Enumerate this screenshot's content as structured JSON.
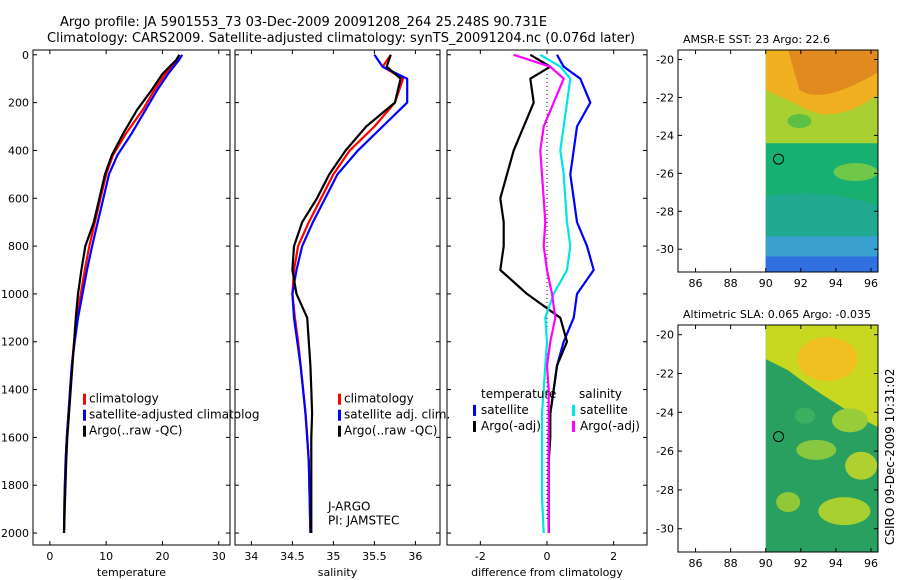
{
  "header": {
    "title_line1": "Argo profile: JA 5901553_73 03-Dec-2009 20091208_264 25.248S 90.731E",
    "title_line2": "Climatology: CARS2009. Satellite-adjusted climatology: synTS_20091204.nc (0.076d later)"
  },
  "side_label": "CSIRO 09-Dec-2009 10:31:02",
  "colors": {
    "climatology": "#ff0000",
    "satellite": "#0000ff",
    "argo": "#000000",
    "sal_satellite": "#00e5e5",
    "sal_argo": "#ff00ff"
  },
  "chart_data": [
    {
      "type": "line",
      "id": "temperature",
      "xlabel": "temperature",
      "ylabel": "",
      "xlim": [
        -3,
        32
      ],
      "ylim": [
        2050,
        -20
      ],
      "xticks": [
        0,
        10,
        20,
        30
      ],
      "yticks": [
        0,
        200,
        400,
        600,
        800,
        1000,
        1200,
        1400,
        1600,
        1800,
        2000
      ],
      "legend": {
        "position": "bottom-left",
        "entries": [
          {
            "label": "climatology",
            "color": "#ff0000"
          },
          {
            "label": "satellite-adjusted climatolog",
            "color": "#0000ff"
          },
          {
            "label": "Argo(..raw -QC)",
            "color": "#000000"
          }
        ]
      },
      "series": [
        {
          "name": "climatology",
          "color": "#ff0000",
          "x": [
            23.0,
            22.6,
            20.5,
            18.5,
            16.5,
            13.5,
            11.2,
            10.0,
            9.0,
            8.0,
            7.0,
            6.2,
            5.5,
            4.8,
            4.3,
            3.9,
            3.6,
            3.3,
            3.0,
            2.8,
            2.6,
            2.5
          ],
          "y": [
            0,
            20,
            80,
            150,
            230,
            330,
            420,
            500,
            600,
            700,
            800,
            900,
            1000,
            1100,
            1200,
            1300,
            1400,
            1500,
            1600,
            1700,
            1850,
            2000
          ]
        },
        {
          "name": "satellite-adjusted climatology",
          "color": "#0000ff",
          "x": [
            23.5,
            23.0,
            21.0,
            19.0,
            17.0,
            14.5,
            12.0,
            10.5,
            9.5,
            8.5,
            7.5,
            6.6,
            5.8,
            5.0,
            4.4,
            3.9,
            3.6,
            3.3,
            3.0,
            2.8,
            2.6,
            2.5
          ],
          "y": [
            0,
            20,
            80,
            150,
            230,
            330,
            420,
            500,
            600,
            700,
            800,
            900,
            1000,
            1100,
            1200,
            1300,
            1400,
            1500,
            1600,
            1700,
            1850,
            2000
          ]
        },
        {
          "name": "Argo(..raw -QC)",
          "color": "#000000",
          "x": [
            23.0,
            22.5,
            20.0,
            18.0,
            15.5,
            13.0,
            11.0,
            9.8,
            8.8,
            7.8,
            6.3,
            5.6,
            5.0,
            4.6,
            4.3,
            4.0,
            3.7,
            3.4,
            3.1,
            2.9,
            2.7,
            2.5
          ],
          "y": [
            0,
            20,
            80,
            150,
            230,
            330,
            420,
            500,
            600,
            700,
            800,
            900,
            1000,
            1100,
            1200,
            1300,
            1400,
            1500,
            1600,
            1700,
            1850,
            2000
          ]
        }
      ]
    },
    {
      "type": "line",
      "id": "salinity",
      "xlabel": "salinity",
      "xlim": [
        33.8,
        36.3
      ],
      "ylim": [
        2050,
        -20
      ],
      "xticks": [
        34,
        34.5,
        35,
        35.5,
        36
      ],
      "legend": {
        "position": "bottom-right",
        "entries": [
          {
            "label": "climatology",
            "color": "#ff0000"
          },
          {
            "label": "satellite adj. clim.",
            "color": "#0000ff"
          },
          {
            "label": "Argo(..raw -QC)",
            "color": "#000000"
          }
        ]
      },
      "annotation": [
        "J-ARGO",
        "PI: JAMSTEC"
      ],
      "series": [
        {
          "name": "climatology",
          "color": "#ff0000",
          "x": [
            35.7,
            35.6,
            35.85,
            35.75,
            35.5,
            35.2,
            35.0,
            34.85,
            34.7,
            34.57,
            34.52,
            34.5,
            34.53,
            34.57,
            34.6,
            34.63,
            34.66,
            34.68,
            34.7,
            34.71,
            34.72
          ],
          "y": [
            0,
            50,
            100,
            200,
            300,
            400,
            500,
            600,
            700,
            800,
            900,
            1000,
            1100,
            1200,
            1300,
            1400,
            1500,
            1600,
            1700,
            1850,
            2000
          ]
        },
        {
          "name": "satellite adjusted",
          "color": "#0000ff",
          "x": [
            35.5,
            35.6,
            35.9,
            35.9,
            35.6,
            35.3,
            35.05,
            34.9,
            34.75,
            34.62,
            34.55,
            34.5,
            34.52,
            34.56,
            34.6,
            34.63,
            34.66,
            34.68,
            34.7,
            34.71,
            34.72
          ],
          "y": [
            0,
            50,
            100,
            200,
            300,
            400,
            500,
            600,
            700,
            800,
            900,
            1000,
            1100,
            1200,
            1300,
            1400,
            1500,
            1600,
            1700,
            1850,
            2000
          ]
        },
        {
          "name": "Argo(..raw -QC)",
          "color": "#000000",
          "x": [
            35.7,
            35.65,
            35.82,
            35.75,
            35.4,
            35.15,
            34.95,
            34.8,
            34.62,
            34.52,
            34.5,
            34.55,
            34.68,
            34.7,
            34.72,
            34.73,
            34.74,
            34.73,
            34.73,
            34.73,
            34.73
          ],
          "y": [
            0,
            50,
            100,
            200,
            300,
            400,
            500,
            600,
            700,
            800,
            900,
            1000,
            1100,
            1200,
            1300,
            1400,
            1500,
            1600,
            1700,
            1850,
            2000
          ]
        }
      ]
    },
    {
      "type": "line",
      "id": "difference",
      "xlabel": "difference from climatology",
      "xlim": [
        -3.0,
        3.0
      ],
      "ylim": [
        2050,
        -20
      ],
      "xticks": [
        -2,
        0,
        2
      ],
      "zero_line": true,
      "legend": {
        "position": "bottom",
        "left_title": "temperature",
        "right_title": "salinity",
        "left_entries": [
          {
            "label": "satellite",
            "color": "#0000ff"
          },
          {
            "label": "Argo(-adj)",
            "color": "#000000"
          }
        ],
        "right_entries": [
          {
            "label": "satellite",
            "color": "#00e5e5"
          },
          {
            "label": "Argo(-adj)",
            "color": "#ff00ff"
          }
        ]
      },
      "series": [
        {
          "name": "temperature satellite",
          "color": "#0000ff",
          "x": [
            0.3,
            0.5,
            1.0,
            1.3,
            0.9,
            0.8,
            0.7,
            0.8,
            0.9,
            1.2,
            1.4,
            0.9,
            0.8,
            0.5,
            0.3,
            0.2,
            0.1,
            0.05,
            0.05,
            0.05,
            0.05
          ],
          "y": [
            0,
            50,
            100,
            200,
            300,
            400,
            500,
            600,
            700,
            800,
            900,
            1000,
            1100,
            1200,
            1300,
            1400,
            1500,
            1600,
            1700,
            1850,
            2000
          ]
        },
        {
          "name": "temperature Argo(-adj)",
          "color": "#000000",
          "x": [
            -0.5,
            0.1,
            -0.5,
            -0.4,
            -0.7,
            -1.0,
            -1.2,
            -1.4,
            -1.3,
            -1.3,
            -1.4,
            -0.6,
            0.4,
            0.6,
            0.3,
            0.2,
            0.1,
            0.1,
            0.05,
            0.05,
            0.05
          ],
          "y": [
            0,
            50,
            100,
            200,
            300,
            400,
            500,
            600,
            700,
            800,
            900,
            1000,
            1100,
            1200,
            1300,
            1400,
            1500,
            1600,
            1700,
            1850,
            2000
          ]
        },
        {
          "name": "salinity satellite",
          "color": "#00e5e5",
          "x": [
            -0.2,
            0.4,
            0.7,
            0.6,
            0.5,
            0.4,
            0.5,
            0.55,
            0.6,
            0.7,
            0.6,
            0.2,
            -0.05,
            0.0,
            -0.05,
            -0.1,
            -0.15,
            -0.15,
            -0.15,
            -0.15,
            -0.1
          ],
          "y": [
            0,
            50,
            100,
            200,
            300,
            400,
            500,
            600,
            700,
            800,
            900,
            1000,
            1100,
            1200,
            1300,
            1400,
            1500,
            1600,
            1700,
            1850,
            2000
          ]
        },
        {
          "name": "salinity Argo(-adj)",
          "color": "#ff00ff",
          "x": [
            -1.0,
            0.1,
            0.5,
            0.2,
            -0.1,
            -0.2,
            -0.15,
            -0.1,
            -0.05,
            -0.1,
            0.0,
            0.15,
            0.25,
            0.1,
            0.0,
            0.05,
            0.05,
            0.05,
            0.05,
            0.05,
            0.05
          ],
          "y": [
            0,
            50,
            100,
            200,
            300,
            400,
            500,
            600,
            700,
            800,
            900,
            1000,
            1100,
            1200,
            1300,
            1400,
            1500,
            1600,
            1700,
            1850,
            2000
          ]
        }
      ]
    },
    {
      "type": "heatmap",
      "id": "sst_map",
      "title": "AMSR-E SST: 23 Argo: 22.6",
      "xlim": [
        85,
        96.4
      ],
      "ylim": [
        -31.2,
        -19.5
      ],
      "xticks": [
        86,
        88,
        90,
        92,
        94,
        96
      ],
      "yticks": [
        -20,
        -22,
        -24,
        -26,
        -28,
        -30
      ],
      "marker": {
        "lon": 90.73,
        "lat": -25.25
      },
      "data_lon_min": 90
    },
    {
      "type": "heatmap",
      "id": "sla_map",
      "title": "Altimetric SLA: 0.065 Argo: -0.035",
      "xlim": [
        85,
        96.4
      ],
      "ylim": [
        -31.2,
        -19.5
      ],
      "xticks": [
        86,
        88,
        90,
        92,
        94,
        96
      ],
      "yticks": [
        -20,
        -22,
        -24,
        -26,
        -28,
        -30
      ],
      "marker": {
        "lon": 90.73,
        "lat": -25.25
      },
      "data_lon_min": 90
    }
  ]
}
